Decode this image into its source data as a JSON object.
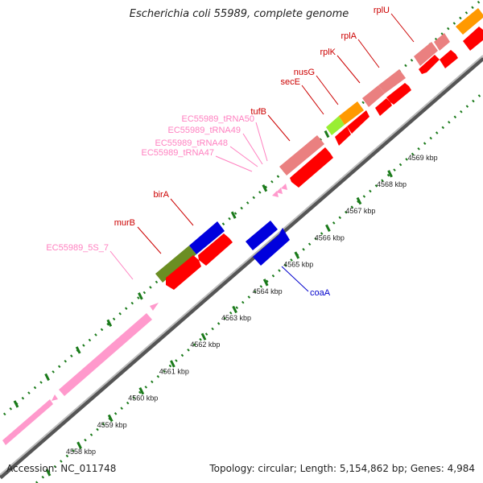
{
  "title": "Escherichia coli 55989, complete genome",
  "footer": {
    "accession": "Accession: NC_011748",
    "summary": "Topology: circular; Length: 5,154,862 bp; Genes: 4,984"
  },
  "colors": {
    "cds": "#ff0000",
    "gene_light": "#ea8080",
    "gene_blue": "#0000dd",
    "gene_olive": "#6b8e23",
    "gene_lime": "#99ee33",
    "gene_orange": "#ff9900",
    "rrna_pink": "#ff99cc",
    "label_red": "#cc0000",
    "label_pink": "#ff80c0",
    "label_blue": "#0000cc",
    "tick_green": "#1a7a1a"
  },
  "scale_labels": [
    "4558 kbp",
    "4559 kbp",
    "4560 kbp",
    "4561 kbp",
    "4562 kbp",
    "4563 kbp",
    "4564 kbp",
    "4565 kbp",
    "4566 kbp",
    "4567 kbp",
    "4568 kbp",
    "4569 kbp"
  ],
  "gene_labels": {
    "rplU": "rplU",
    "rplA": "rplA",
    "rplK": "rplK",
    "nusG": "nusG",
    "secE": "secE",
    "tufB": "tufB",
    "tRNA50": "EC55989_tRNA50",
    "tRNA49": "EC55989_tRNA49",
    "tRNA48": "EC55989_tRNA48",
    "tRNA47": "EC55989_tRNA47",
    "birA": "birA",
    "murB": "murB",
    "s5_7": "EC55989_5S_7",
    "coaA": "coaA"
  }
}
